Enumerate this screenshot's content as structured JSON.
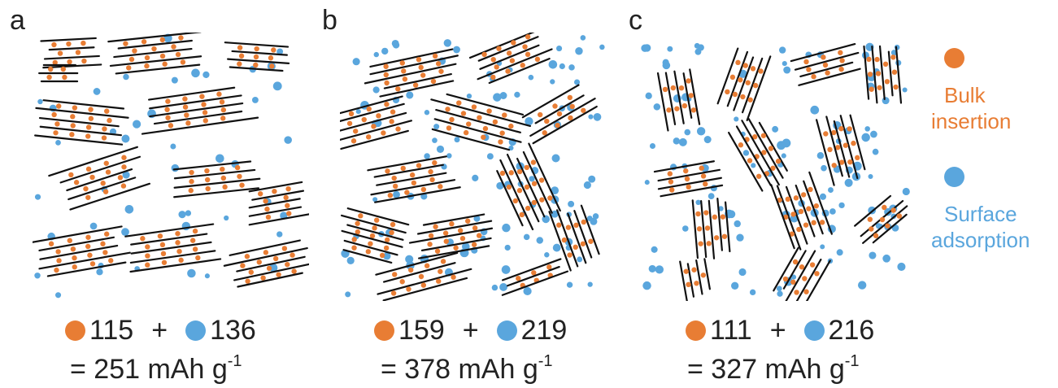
{
  "colors": {
    "bulk": "#e87d34",
    "surface": "#5aa6dd",
    "stroke": "#111111"
  },
  "panels": [
    {
      "letter": "a",
      "bulk": "115",
      "plus": "+",
      "surface": "136",
      "total_prefix": "= 251 mAh g",
      "total_exp": "-1"
    },
    {
      "letter": "b",
      "bulk": "159",
      "plus": "+",
      "surface": "219",
      "total_prefix": "= 378 mAh g",
      "total_exp": "-1"
    },
    {
      "letter": "c",
      "bulk": "111",
      "plus": "+",
      "surface": "216",
      "total_prefix": "= 327 mAh g",
      "total_exp": "-1"
    }
  ],
  "legend": {
    "bulk_line1": "Bulk",
    "bulk_line2": "insertion",
    "surface_line1": "Surface",
    "surface_line2": "adsorption"
  }
}
